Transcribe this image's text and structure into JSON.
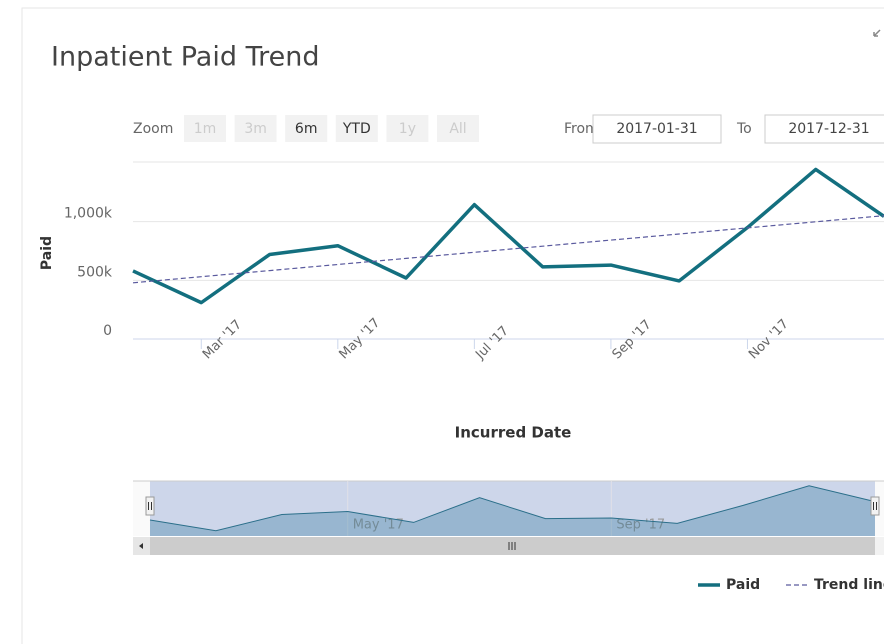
{
  "title": "Inpatient Paid Trend",
  "zoom": {
    "label": "Zoom",
    "buttons": [
      "1m",
      "3m",
      "6m",
      "YTD",
      "1y",
      "All"
    ]
  },
  "range": {
    "from_label": "From",
    "from": "2017-01-31",
    "to_label": "To",
    "to": "2017-12-31"
  },
  "chart_data": {
    "type": "line",
    "xlabel": "Incurred Date",
    "ylabel": "Paid",
    "categories": [
      null,
      "Mar '17",
      null,
      "May '17",
      null,
      "Jul '17",
      null,
      "Sep '17",
      null,
      "Nov '17",
      null,
      null
    ],
    "series": [
      {
        "name": "Paid",
        "color": "#136f7f",
        "values": [
          580000,
          310000,
          720000,
          795000,
          520000,
          1145000,
          615000,
          630000,
          495000,
          950000,
          1445000,
          1045000
        ]
      },
      {
        "name": "Trend line",
        "color": "#5a5a9e",
        "dashed": true,
        "values": [
          479000,
          531000,
          583000,
          635000,
          687000,
          739000,
          791000,
          843000,
          895000,
          947000,
          999000,
          1051000
        ]
      }
    ],
    "ylim": [
      0,
      1500000
    ],
    "yticks": [
      0,
      {
        "value": 500000,
        "label": "500k"
      },
      {
        "value": 1000000,
        "label": "1,000k"
      }
    ]
  }
}
